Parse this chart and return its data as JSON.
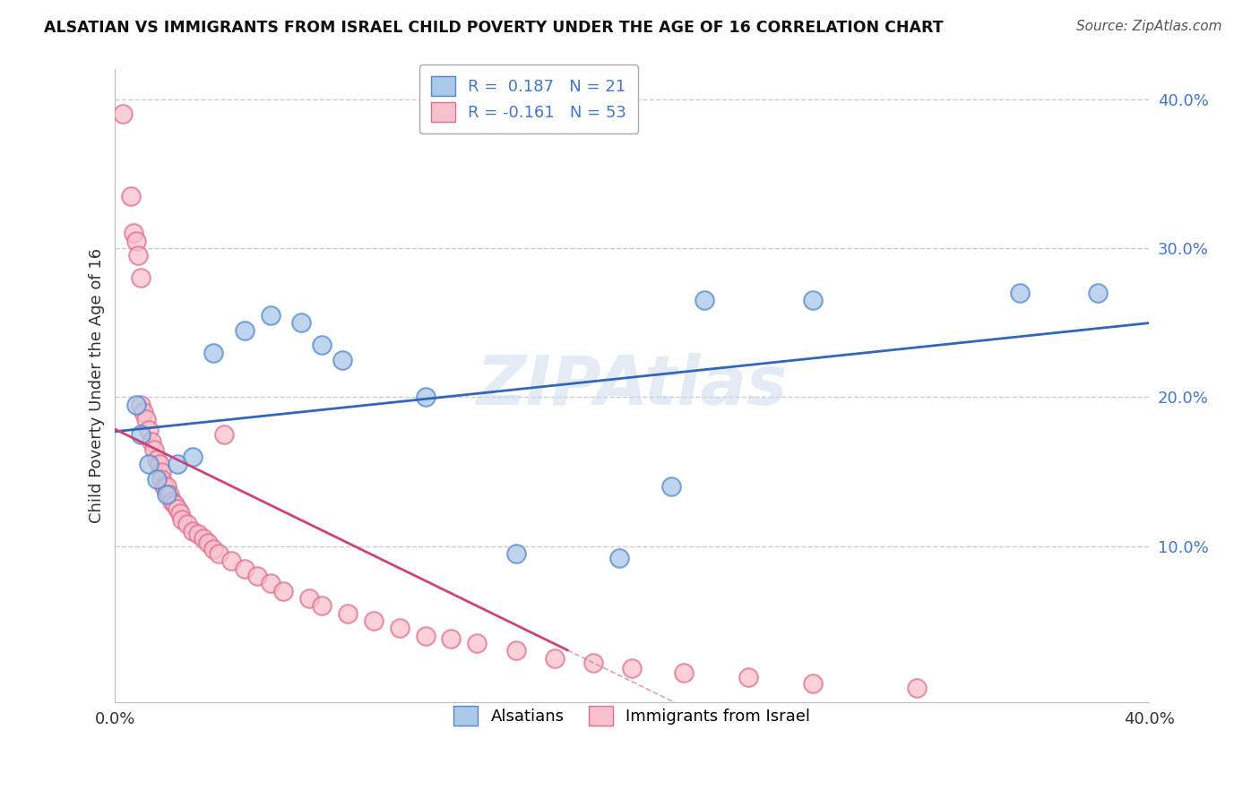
{
  "title": "ALSATIAN VS IMMIGRANTS FROM ISRAEL CHILD POVERTY UNDER THE AGE OF 16 CORRELATION CHART",
  "source": "Source: ZipAtlas.com",
  "ylabel": "Child Poverty Under the Age of 16",
  "xlim": [
    0.0,
    0.4
  ],
  "ylim": [
    -0.005,
    0.42
  ],
  "yticks": [
    0.1,
    0.2,
    0.3,
    0.4
  ],
  "ytick_labels": [
    "10.0%",
    "20.0%",
    "30.0%",
    "40.0%"
  ],
  "watermark": "ZIPAtlas",
  "r_alsatian": 0.187,
  "n_alsatian": 21,
  "r_israel": -0.161,
  "n_israel": 53,
  "blue_scatter_color": "#aac8e8",
  "blue_edge_color": "#5588cc",
  "pink_scatter_color": "#f8c0cc",
  "pink_edge_color": "#e07090",
  "line_blue_color": "#3366bb",
  "line_pink_color": "#cc4477",
  "alsatian_x": [
    0.008,
    0.01,
    0.013,
    0.016,
    0.02,
    0.024,
    0.03,
    0.038,
    0.05,
    0.06,
    0.072,
    0.08,
    0.088,
    0.12,
    0.195,
    0.215,
    0.228,
    0.27,
    0.38,
    0.35,
    0.155
  ],
  "alsatian_y": [
    0.195,
    0.175,
    0.155,
    0.145,
    0.135,
    0.155,
    0.16,
    0.23,
    0.245,
    0.255,
    0.25,
    0.235,
    0.225,
    0.2,
    0.092,
    0.14,
    0.265,
    0.265,
    0.27,
    0.27,
    0.095
  ],
  "israel_x": [
    0.003,
    0.006,
    0.007,
    0.008,
    0.009,
    0.01,
    0.01,
    0.011,
    0.012,
    0.013,
    0.014,
    0.015,
    0.016,
    0.017,
    0.018,
    0.018,
    0.019,
    0.02,
    0.021,
    0.022,
    0.023,
    0.024,
    0.025,
    0.026,
    0.028,
    0.03,
    0.032,
    0.034,
    0.036,
    0.038,
    0.04,
    0.042,
    0.045,
    0.05,
    0.055,
    0.06,
    0.065,
    0.075,
    0.08,
    0.09,
    0.1,
    0.11,
    0.12,
    0.13,
    0.14,
    0.155,
    0.17,
    0.185,
    0.2,
    0.22,
    0.245,
    0.27,
    0.31
  ],
  "israel_y": [
    0.39,
    0.335,
    0.31,
    0.305,
    0.295,
    0.28,
    0.195,
    0.19,
    0.185,
    0.178,
    0.17,
    0.165,
    0.158,
    0.155,
    0.15,
    0.145,
    0.14,
    0.14,
    0.135,
    0.13,
    0.128,
    0.125,
    0.122,
    0.118,
    0.115,
    0.11,
    0.108,
    0.105,
    0.102,
    0.098,
    0.095,
    0.175,
    0.09,
    0.085,
    0.08,
    0.075,
    0.07,
    0.065,
    0.06,
    0.055,
    0.05,
    0.045,
    0.04,
    0.038,
    0.035,
    0.03,
    0.025,
    0.022,
    0.018,
    0.015,
    0.012,
    0.008,
    0.005
  ],
  "background_color": "#ffffff",
  "grid_color": "#cccccc"
}
